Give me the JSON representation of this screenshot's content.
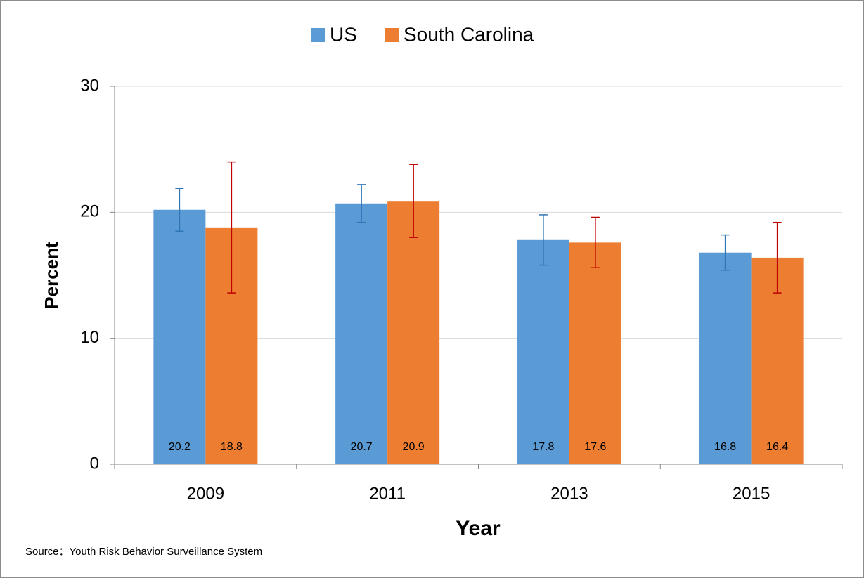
{
  "chart_data": {
    "type": "bar",
    "source": "Source：Youth Risk Behavior Surveillance System",
    "x_label": "Year",
    "y_label": "Percent",
    "categories": [
      "2009",
      "2011",
      "2013",
      "2015"
    ],
    "series": [
      {
        "name": "US",
        "color": "#5b9bd5",
        "error_color": "#2e75b6",
        "values": [
          20.2,
          20.7,
          17.8,
          16.8
        ],
        "ci_low": [
          18.5,
          19.2,
          15.8,
          15.4
        ],
        "ci_high": [
          21.9,
          22.2,
          19.8,
          18.2
        ]
      },
      {
        "name": "South Carolina",
        "color": "#ed7d31",
        "error_color": "#c00000",
        "values": [
          18.8,
          20.9,
          17.6,
          16.4
        ],
        "ci_low": [
          13.6,
          18.0,
          15.6,
          13.6
        ],
        "ci_high": [
          24.0,
          23.8,
          19.6,
          19.2
        ]
      }
    ],
    "ylim": [
      0,
      30
    ],
    "yticks": [
      0,
      10,
      20,
      30
    ],
    "grid": true,
    "legend": "top"
  }
}
